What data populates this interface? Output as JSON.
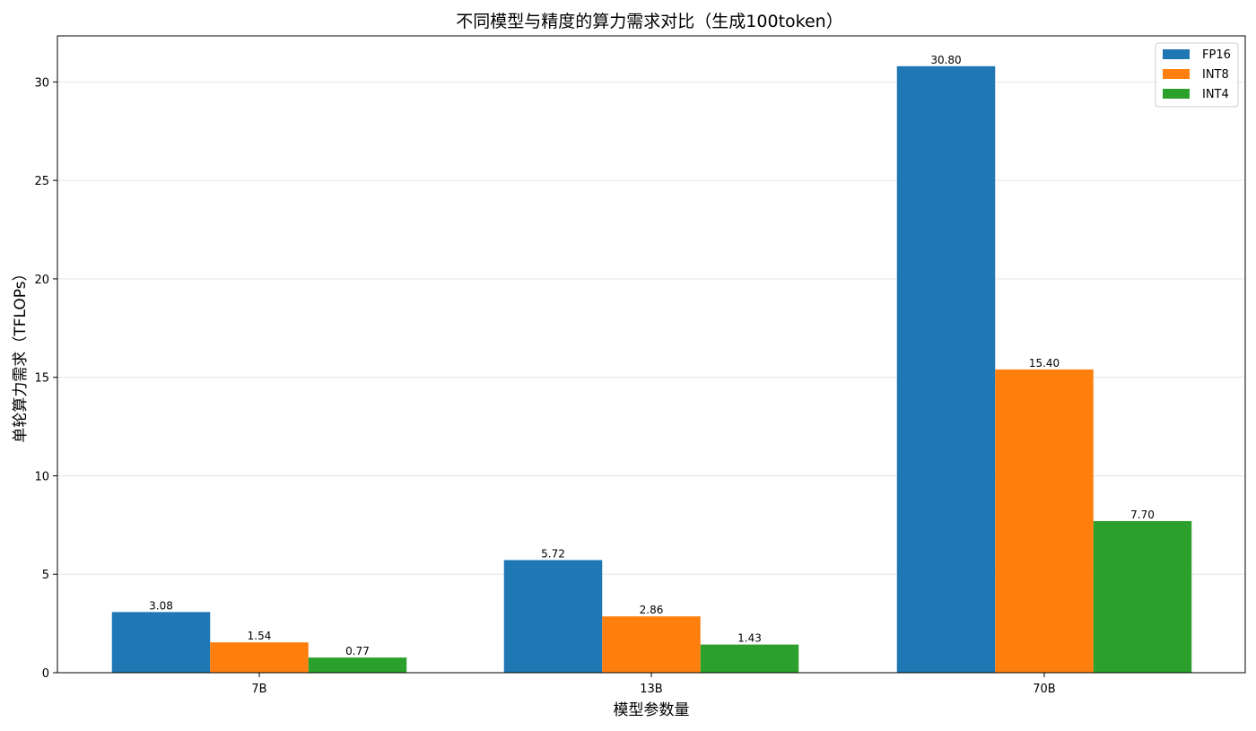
{
  "chart_data": {
    "type": "bar",
    "title": "不同模型与精度的算力需求对比（生成100token）",
    "xlabel": "模型参数量",
    "ylabel": "单轮算力需求（TFLOPs）",
    "categories": [
      "7B",
      "13B",
      "70B"
    ],
    "series": [
      {
        "name": "FP16",
        "color": "#1f77b4",
        "values": [
          3.08,
          5.72,
          30.8
        ],
        "labels": [
          "3.08",
          "5.72",
          "30.80"
        ]
      },
      {
        "name": "INT8",
        "color": "#ff7f0e",
        "values": [
          1.54,
          2.86,
          15.4
        ],
        "labels": [
          "1.54",
          "2.86",
          "15.40"
        ]
      },
      {
        "name": "INT4",
        "color": "#2ca02c",
        "values": [
          0.77,
          1.43,
          7.7
        ],
        "labels": [
          "0.77",
          "1.43",
          "7.70"
        ]
      }
    ],
    "ylim": [
      0,
      32.34
    ],
    "yticks": [
      0,
      5,
      10,
      15,
      20,
      25,
      30
    ],
    "grid": "y",
    "legend_position": "top-right"
  }
}
